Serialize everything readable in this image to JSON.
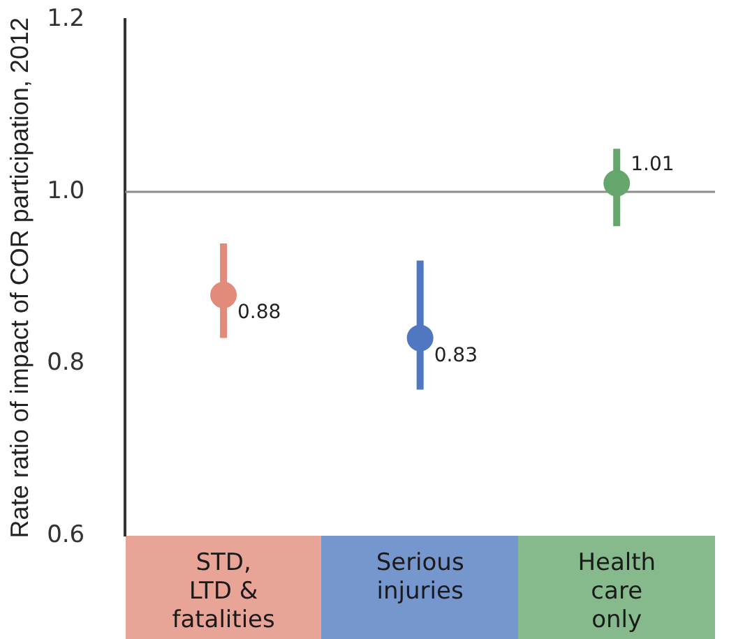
{
  "chart_data": {
    "type": "scatter",
    "ylabel": "Rate ratio of impact of COR participation, 2012",
    "categories": [
      "STD,\nLTD &\nfatalities",
      "Serious\ninjuries",
      "Health\ncare\nonly"
    ],
    "values": [
      0.88,
      0.83,
      1.01
    ],
    "errors": [
      [
        0.83,
        0.94
      ],
      [
        0.77,
        0.92
      ],
      [
        0.96,
        1.05
      ]
    ],
    "colors": [
      "#e38b7b",
      "#4f78c0",
      "#64a66c"
    ],
    "ylim": [
      0.6,
      1.2
    ],
    "yticks": [
      0.6,
      0.8,
      {
        "value": 1,
        "label": "1.0"
      },
      1.2
    ],
    "ref_lines": [
      {
        "axis": "y",
        "value": 1,
        "color": "#8c8c8c"
      }
    ],
    "data_labels": true,
    "marker": "circle",
    "grid": false,
    "legend": false
  }
}
